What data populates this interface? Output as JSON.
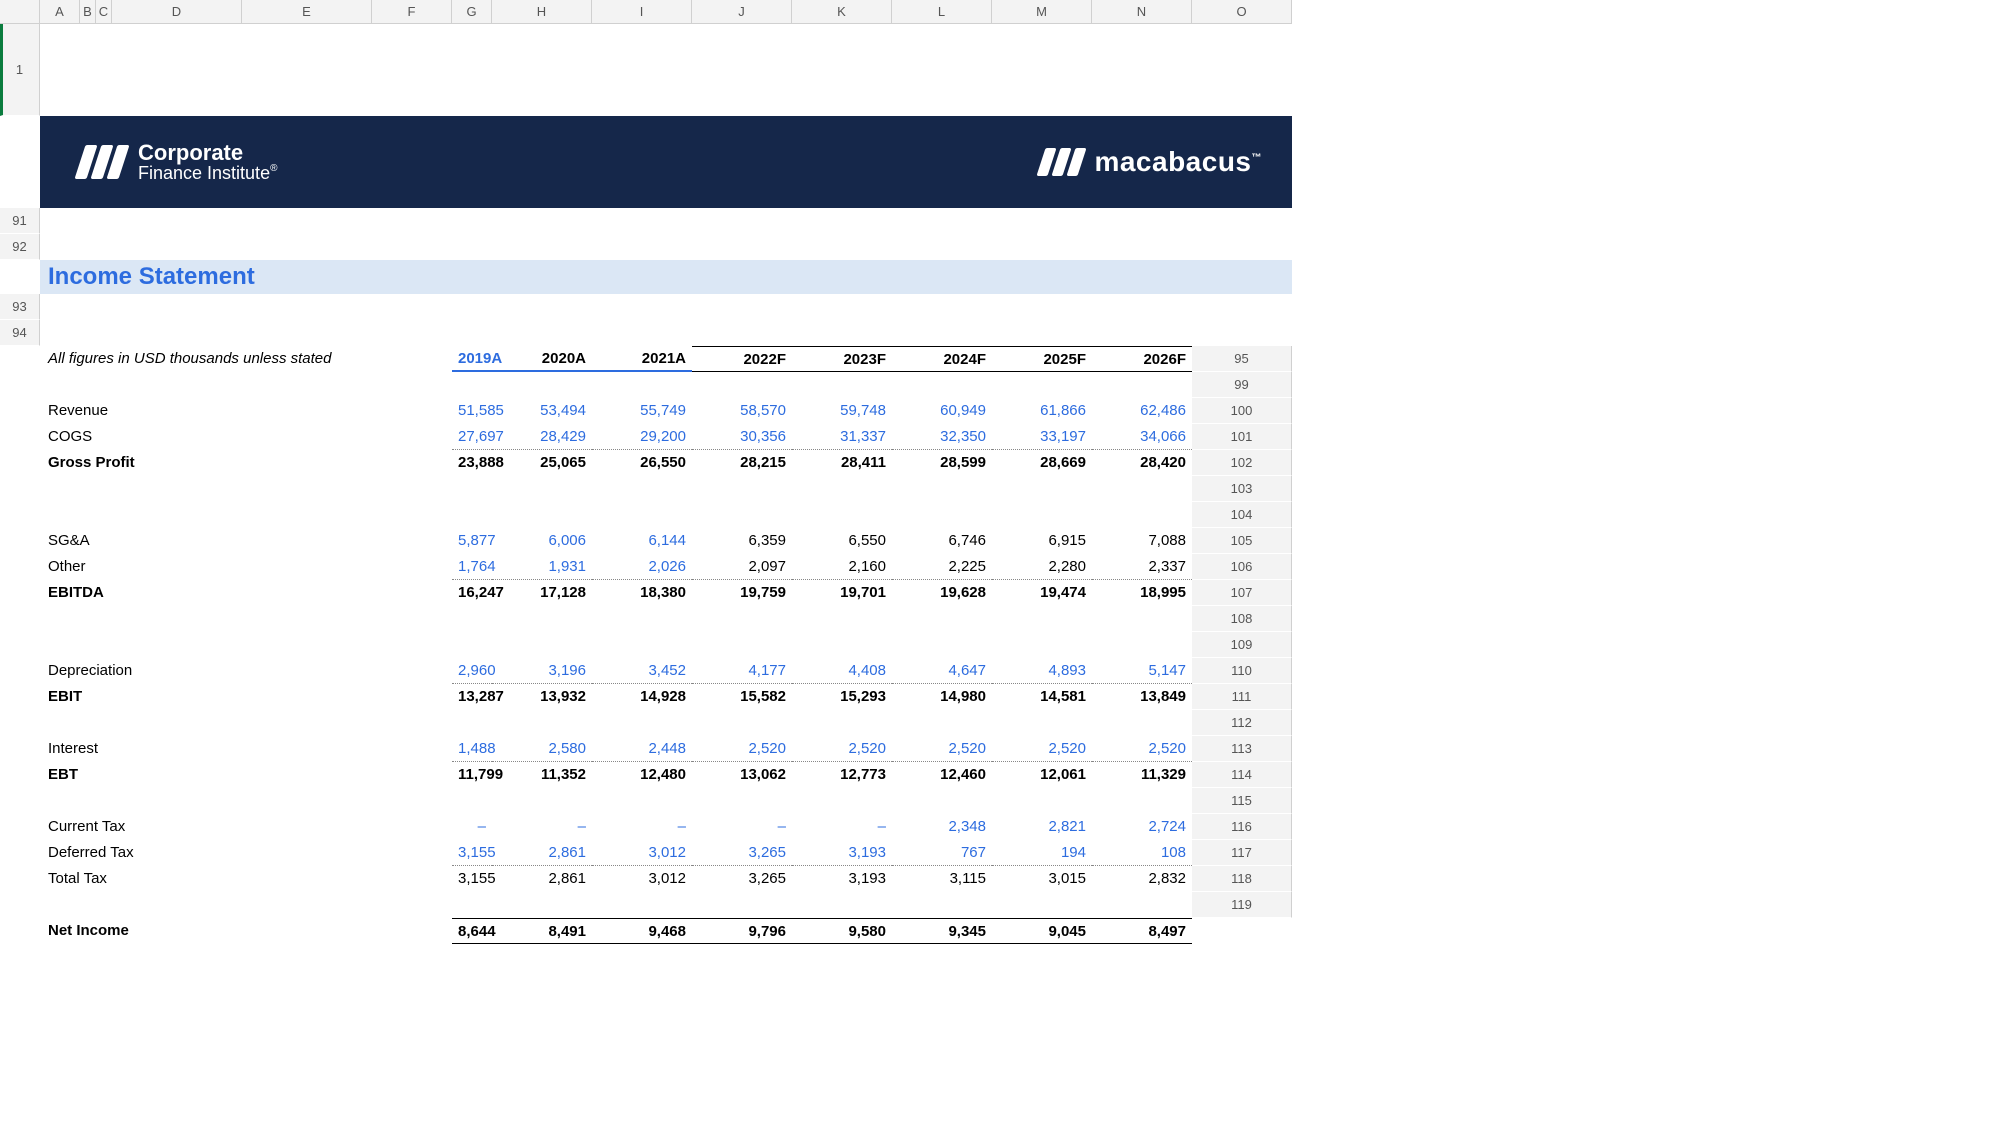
{
  "colHeaders": [
    "",
    "A",
    "B",
    "C",
    "D",
    "E",
    "F",
    "G",
    "H",
    "I",
    "J",
    "K",
    "L",
    "M",
    "N",
    "O"
  ],
  "rowHeaders": [
    "1",
    "91",
    "92",
    "93",
    "94",
    "95",
    "99",
    "100",
    "101",
    "102",
    "103",
    "104",
    "105",
    "106",
    "107",
    "108",
    "109",
    "110",
    "111",
    "112",
    "113",
    "114",
    "115",
    "116",
    "117",
    "118",
    "119"
  ],
  "banner": {
    "cfi_line1": "Corporate",
    "cfi_line2": "Finance Institute",
    "macabacus": "macabacus"
  },
  "sectionTitle": "Income Statement",
  "note": "All figures in USD thousands unless stated",
  "years": [
    "2019A",
    "2020A",
    "2021A",
    "2022F",
    "2023F",
    "2024F",
    "2025F",
    "2026F"
  ],
  "actualCount": 3,
  "selectedYearIndex": 0,
  "rows": [
    {
      "label": "Revenue",
      "bold": false,
      "blue": true,
      "border": "",
      "values": [
        "51,585",
        "53,494",
        "55,749",
        "58,570",
        "59,748",
        "60,949",
        "61,866",
        "62,486"
      ]
    },
    {
      "label": "COGS",
      "bold": false,
      "blue": true,
      "border": "dot",
      "values": [
        "27,697",
        "28,429",
        "29,200",
        "30,356",
        "31,337",
        "32,350",
        "33,197",
        "34,066"
      ]
    },
    {
      "label": "Gross Profit",
      "bold": true,
      "blue": false,
      "border": "",
      "values": [
        "23,888",
        "25,065",
        "26,550",
        "28,215",
        "28,411",
        "28,599",
        "28,669",
        "28,420"
      ]
    },
    {
      "label": "",
      "spacer": true
    },
    {
      "label": "",
      "spacer": true
    },
    {
      "label": "SG&A",
      "bold": false,
      "blue": true,
      "border": "",
      "mixedFrom": 3,
      "values": [
        "5,877",
        "6,006",
        "6,144",
        "6,359",
        "6,550",
        "6,746",
        "6,915",
        "7,088"
      ]
    },
    {
      "label": "Other",
      "bold": false,
      "blue": true,
      "border": "dot",
      "mixedFrom": 3,
      "values": [
        "1,764",
        "1,931",
        "2,026",
        "2,097",
        "2,160",
        "2,225",
        "2,280",
        "2,337"
      ]
    },
    {
      "label": "EBITDA",
      "bold": true,
      "blue": false,
      "border": "",
      "values": [
        "16,247",
        "17,128",
        "18,380",
        "19,759",
        "19,701",
        "19,628",
        "19,474",
        "18,995"
      ]
    },
    {
      "label": "",
      "spacer": true
    },
    {
      "label": "",
      "spacer": true
    },
    {
      "label": "Depreciation",
      "bold": false,
      "blue": true,
      "border": "dot",
      "values": [
        "2,960",
        "3,196",
        "3,452",
        "4,177",
        "4,408",
        "4,647",
        "4,893",
        "5,147"
      ]
    },
    {
      "label": "EBIT",
      "bold": true,
      "blue": false,
      "border": "",
      "values": [
        "13,287",
        "13,932",
        "14,928",
        "15,582",
        "15,293",
        "14,980",
        "14,581",
        "13,849"
      ]
    },
    {
      "label": "",
      "spacer": true
    },
    {
      "label": "Interest",
      "bold": false,
      "blue": true,
      "border": "dot",
      "values": [
        "1,488",
        "2,580",
        "2,448",
        "2,520",
        "2,520",
        "2,520",
        "2,520",
        "2,520"
      ]
    },
    {
      "label": "EBT",
      "bold": true,
      "blue": false,
      "border": "",
      "values": [
        "11,799",
        "11,352",
        "12,480",
        "13,062",
        "12,773",
        "12,460",
        "12,061",
        "11,329"
      ]
    },
    {
      "label": "",
      "spacer": true
    },
    {
      "label": "Current Tax",
      "bold": false,
      "blue": true,
      "border": "",
      "values": [
        "–",
        "–",
        "–",
        "–",
        "–",
        "2,348",
        "2,821",
        "2,724"
      ]
    },
    {
      "label": "Deferred Tax",
      "bold": false,
      "blue": true,
      "border": "dot",
      "values": [
        "3,155",
        "2,861",
        "3,012",
        "3,265",
        "3,193",
        "767",
        "194",
        "108"
      ]
    },
    {
      "label": "Total Tax",
      "bold": false,
      "blue": false,
      "border": "",
      "values": [
        "3,155",
        "2,861",
        "3,012",
        "3,265",
        "3,193",
        "3,115",
        "3,015",
        "2,832"
      ]
    },
    {
      "label": "",
      "spacer": true
    },
    {
      "label": "Net Income",
      "bold": true,
      "blue": false,
      "border": "solidTB",
      "values": [
        "8,644",
        "8,491",
        "9,468",
        "9,796",
        "9,580",
        "9,345",
        "9,045",
        "8,497"
      ]
    }
  ],
  "colors": {
    "bannerBg": "#15274a",
    "sectionBg": "#dbe7f5",
    "link": "#2d6cdf",
    "headerBg": "#f3f3f3",
    "selGreen": "#0a7c3e"
  }
}
